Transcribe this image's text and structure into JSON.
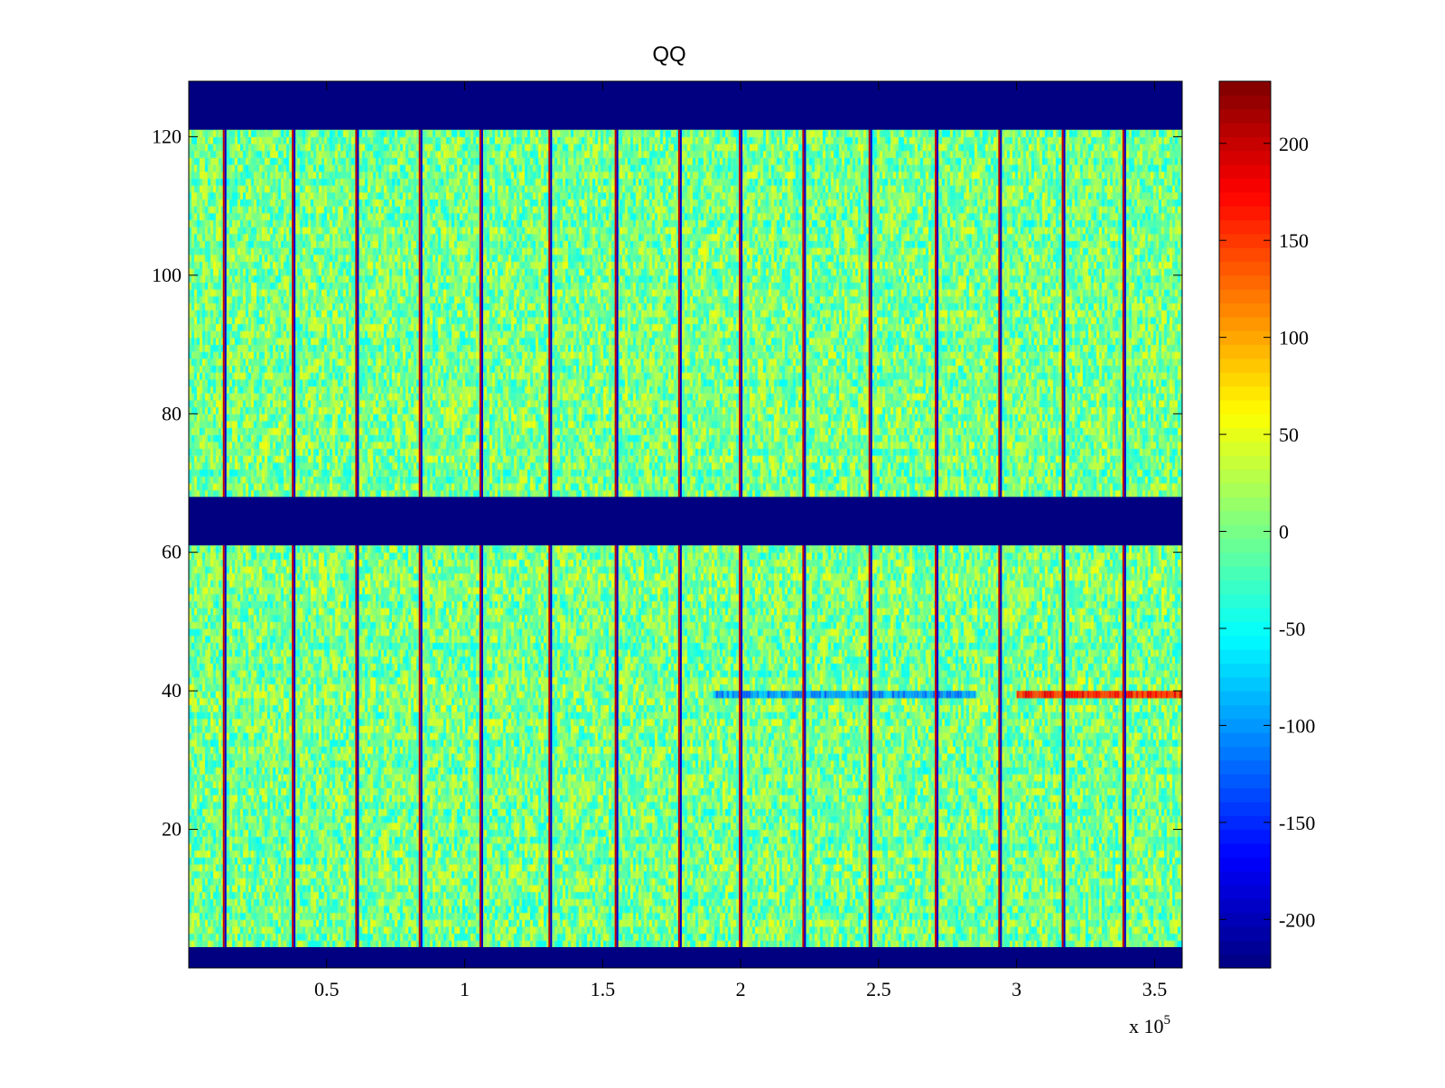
{
  "chart_data": {
    "type": "heatmap",
    "title": "QQ",
    "xlabel": "",
    "ylabel": "",
    "colormap": "jet",
    "x_multiplier_label": "x 10",
    "x_multiplier_exponent": "5",
    "xlim": [
      0,
      360000
    ],
    "ylim": [
      0,
      128
    ],
    "x_ticks": [
      50000,
      100000,
      150000,
      200000,
      250000,
      300000,
      350000
    ],
    "x_tick_labels": [
      "0.5",
      "1",
      "1.5",
      "2",
      "2.5",
      "3",
      "3.5"
    ],
    "y_ticks": [
      20,
      40,
      60,
      80,
      100,
      120
    ],
    "y_tick_labels": [
      "20",
      "40",
      "60",
      "80",
      "100",
      "120"
    ],
    "colorbar": {
      "clim": [
        -225,
        232
      ],
      "ticks": [
        -200,
        -150,
        -100,
        -50,
        0,
        50,
        100,
        150,
        200
      ],
      "tick_labels": [
        "-200",
        "-150",
        "-100",
        "-50",
        "0",
        "50",
        "100",
        "150",
        "200"
      ]
    },
    "blank_row_bands": [
      {
        "y": [
          121,
          128
        ],
        "value": -225
      },
      {
        "y": [
          61,
          68
        ],
        "value": -225
      },
      {
        "y": [
          0,
          3
        ],
        "value": -225
      }
    ],
    "vertical_stripe_x": [
      13000,
      38000,
      61000,
      84000,
      106000,
      131000,
      155000,
      178000,
      200000,
      223000,
      247000,
      271000,
      294000,
      317000,
      339000
    ],
    "background_value_range": [
      -60,
      60
    ],
    "highlighted_rows": [
      {
        "row": 39,
        "x_range": [
          300000,
          360000
        ],
        "value": 160
      },
      {
        "row": 39,
        "x_range": [
          190000,
          285000
        ],
        "value": -100
      }
    ]
  }
}
